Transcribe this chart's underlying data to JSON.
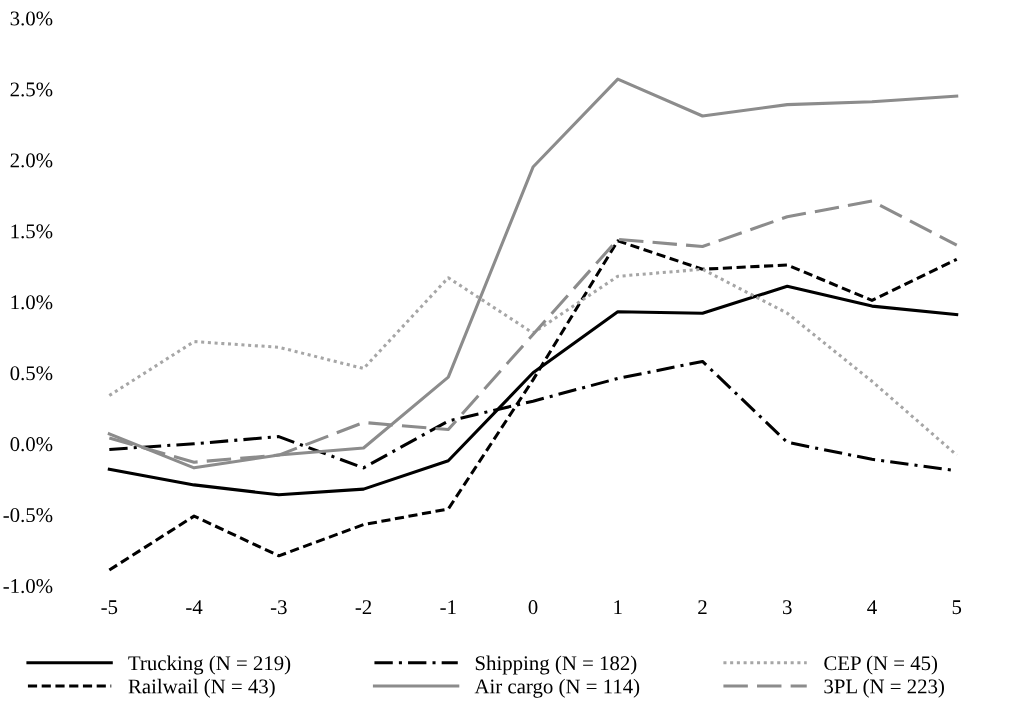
{
  "chart_data": {
    "type": "line",
    "categories": [
      "-5",
      "-4",
      "-3",
      "-2",
      "-1",
      "0",
      "1",
      "2",
      "3",
      "4",
      "5"
    ],
    "series": [
      {
        "name": "Trucking (N = 219)",
        "color": "#000000",
        "line_style": "solid",
        "values": [
          -0.18,
          -0.29,
          -0.36,
          -0.32,
          -0.12,
          0.5,
          0.93,
          0.92,
          1.11,
          0.97,
          0.91
        ]
      },
      {
        "name": "Railwail (N = 43)",
        "color": "#000000",
        "line_style": "dashed",
        "values": [
          -0.89,
          -0.51,
          -0.79,
          -0.57,
          -0.46,
          0.45,
          1.43,
          1.23,
          1.26,
          1.01,
          1.3
        ]
      },
      {
        "name": "Shipping (N = 182)",
        "color": "#000000",
        "line_style": "dashdot",
        "values": [
          -0.04,
          0.0,
          0.05,
          -0.17,
          0.16,
          0.3,
          0.46,
          0.58,
          0.01,
          -0.11,
          -0.19
        ]
      },
      {
        "name": "Air cargo (N = 114)",
        "color": "#8c8c8c",
        "line_style": "solid",
        "values": [
          0.07,
          -0.17,
          -0.08,
          -0.03,
          0.47,
          1.95,
          2.57,
          2.31,
          2.39,
          2.41,
          2.45
        ]
      },
      {
        "name": "CEP (N = 45)",
        "color": "#a6a6a6",
        "line_style": "dotted",
        "values": [
          0.34,
          0.72,
          0.68,
          0.53,
          1.17,
          0.78,
          1.18,
          1.23,
          0.92,
          0.44,
          -0.08
        ]
      },
      {
        "name": "3PL (N = 223)",
        "color": "#8c8c8c",
        "line_style": "longdash",
        "values": [
          0.04,
          -0.13,
          -0.08,
          0.15,
          0.1,
          0.77,
          1.44,
          1.39,
          1.6,
          1.71,
          1.4
        ]
      }
    ],
    "ylim": [
      -1.0,
      3.0
    ],
    "yticks": [
      {
        "value": -1.0,
        "label": "-1.0%"
      },
      {
        "value": -0.5,
        "label": "-0.5%"
      },
      {
        "value": 0.0,
        "label": "0.0%"
      },
      {
        "value": 0.5,
        "label": "0.5%"
      },
      {
        "value": 1.0,
        "label": "1.0%"
      },
      {
        "value": 1.5,
        "label": "1.5%"
      },
      {
        "value": 2.0,
        "label": "2.0%"
      },
      {
        "value": 2.5,
        "label": "2.5%"
      },
      {
        "value": 3.0,
        "label": "3.0%"
      }
    ],
    "legend": "bottom",
    "grid": false,
    "marker": "none"
  }
}
